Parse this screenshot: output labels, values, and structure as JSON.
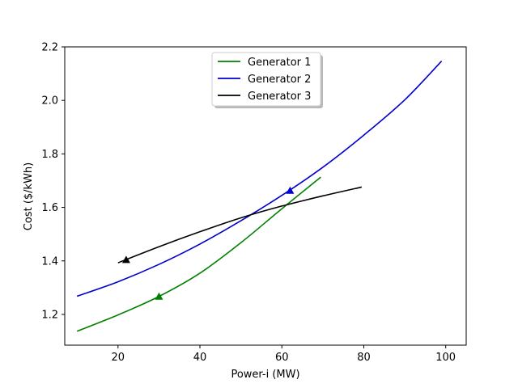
{
  "chart_data": {
    "type": "line",
    "title": "",
    "xlabel": "Power-i (MW)",
    "ylabel": "Cost ($/kWh)",
    "xlim": [
      7,
      105
    ],
    "ylim": [
      1.085,
      2.2
    ],
    "xticks": [
      20,
      40,
      60,
      80,
      100
    ],
    "yticks": [
      1.2,
      1.4,
      1.6,
      1.8,
      2.0,
      2.2
    ],
    "xtick_labels": [
      "20",
      "40",
      "60",
      "80",
      "100"
    ],
    "ytick_labels": [
      "1.2",
      "1.4",
      "1.6",
      "1.8",
      "2.0",
      "2.2"
    ],
    "grid": false,
    "legend_position": "top-center",
    "series": [
      {
        "name": "Generator 1",
        "color": "#008000",
        "x": [
          10,
          20,
          30,
          40,
          50,
          60,
          69.5
        ],
        "y": [
          1.137,
          1.198,
          1.267,
          1.354,
          1.468,
          1.595,
          1.713
        ],
        "marker": {
          "x": 30,
          "y": 1.267
        }
      },
      {
        "name": "Generator 2",
        "color": "#0000cc",
        "x": [
          10,
          20,
          30,
          40,
          50,
          60,
          70,
          80,
          90,
          99
        ],
        "y": [
          1.268,
          1.322,
          1.387,
          1.463,
          1.55,
          1.645,
          1.75,
          1.87,
          2.002,
          2.147
        ],
        "marker": {
          "x": 62,
          "y": 1.663
        }
      },
      {
        "name": "Generator 3",
        "color": "#000000",
        "x": [
          20,
          30,
          40,
          50,
          60,
          70,
          79.5
        ],
        "y": [
          1.393,
          1.453,
          1.509,
          1.561,
          1.605,
          1.643,
          1.676
        ],
        "marker": {
          "x": 22,
          "y": 1.404
        }
      }
    ]
  }
}
